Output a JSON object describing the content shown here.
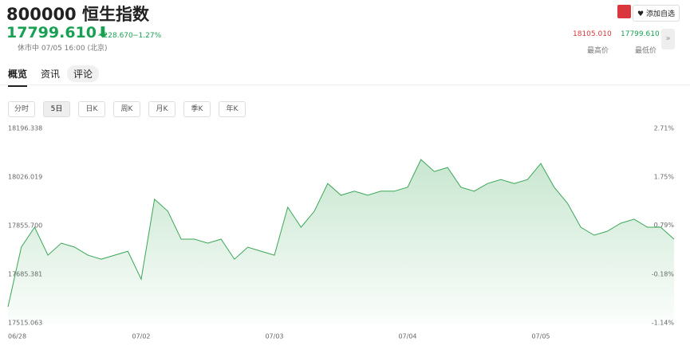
{
  "header": {
    "title": "800000 恒生指数",
    "price": "17799.610",
    "change": "−228.670",
    "change_pct": "−1.27%",
    "status": "休市中 07/05 16:00 (北京)",
    "add_watch": "添加自选",
    "stats": [
      {
        "value": "18105.010",
        "label": "最高价"
      },
      {
        "value": "17799.610",
        "label": "最低价"
      }
    ]
  },
  "tabs": [
    "概览",
    "资讯",
    "评论"
  ],
  "periods": [
    "分时",
    "5日",
    "日K",
    "周K",
    "月K",
    "季K",
    "年K"
  ],
  "chart_data": {
    "type": "line",
    "categories": [
      "06/28",
      null,
      null,
      null,
      null,
      null,
      null,
      null,
      null,
      null,
      "07/02",
      null,
      null,
      null,
      null,
      null,
      null,
      null,
      null,
      null,
      "07/03",
      null,
      null,
      null,
      null,
      null,
      null,
      null,
      null,
      null,
      "07/04",
      null,
      null,
      null,
      null,
      null,
      null,
      null,
      null,
      null,
      "07/05",
      null,
      null,
      null,
      null,
      null,
      null,
      null,
      null,
      null,
      null
    ],
    "series": [
      {
        "name": "800000",
        "color": "#3aa757",
        "values": [
          17574,
          17783,
          17853,
          17755,
          17797,
          17783,
          17755,
          17741,
          17755,
          17769,
          17671,
          17951,
          17909,
          17811,
          17811,
          17797,
          17811,
          17741,
          17783,
          17769,
          17755,
          17923,
          17853,
          17909,
          18006,
          17965,
          17979,
          17965,
          17979,
          17979,
          17993,
          18090,
          18048,
          18062,
          17993,
          17979,
          18006,
          18020,
          18006,
          18020,
          18076,
          17993,
          17937,
          17853,
          17825,
          17839,
          17867,
          17881,
          17853,
          17853,
          17811
        ]
      }
    ],
    "ylim": [
      17515.063,
      18196.338
    ],
    "yticks": [
      18196.338,
      18026.019,
      {
        "value": 17855.7,
        "label": "17855.700"
      },
      17685.381,
      17515.063
    ],
    "y2lim": [
      -1.14,
      2.71
    ],
    "y2ticks": [
      {
        "value": 2.71,
        "label": "2.71%"
      },
      {
        "value": 1.75,
        "label": "1.75%"
      },
      {
        "value": 0.79,
        "label": "0.79%"
      },
      {
        "value": -0.18,
        "label": "-0.18%"
      },
      {
        "value": -1.14,
        "label": "-1.14%"
      }
    ]
  }
}
